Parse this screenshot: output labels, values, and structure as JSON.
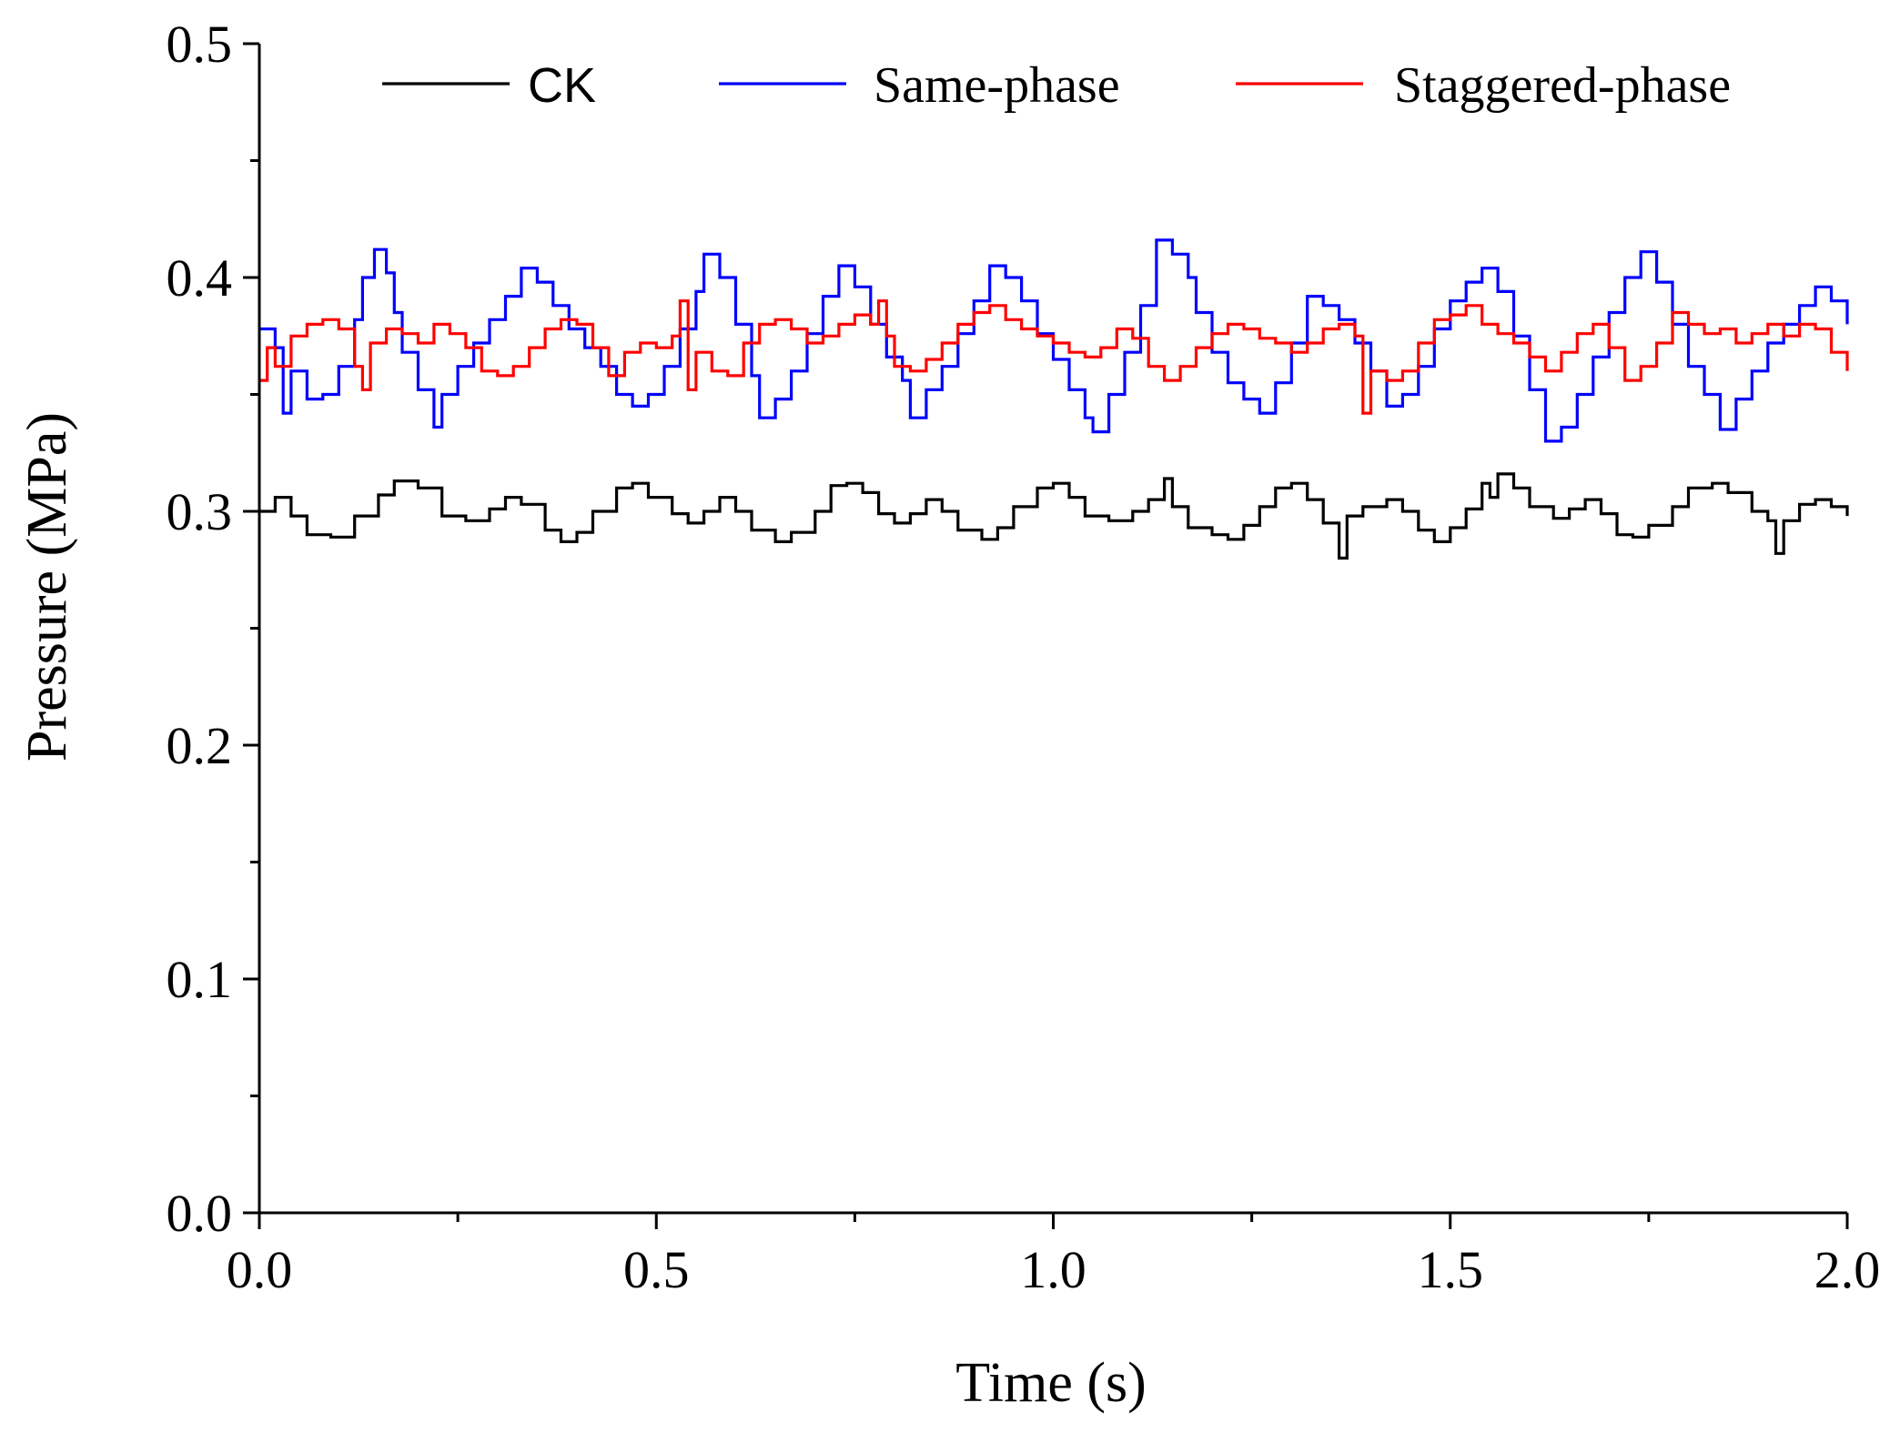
{
  "chart_data": {
    "type": "line",
    "title": "",
    "xlabel": "Time (s)",
    "ylabel": "Pressure (MPa)",
    "xlim": [
      0.0,
      2.0
    ],
    "ylim": [
      0.0,
      0.5
    ],
    "xticks": [
      0.0,
      0.5,
      1.0,
      1.5,
      2.0
    ],
    "xtick_labels": [
      "0.0",
      "0.5",
      "1.0",
      "1.5",
      "2.0"
    ],
    "yticks": [
      0.0,
      0.1,
      0.2,
      0.3,
      0.4,
      0.5
    ],
    "ytick_labels": [
      "0.0",
      "0.1",
      "0.2",
      "0.3",
      "0.4",
      "0.5"
    ],
    "x_minor_step": 0.25,
    "y_minor_step": 0.05,
    "grid": false,
    "legend_position": "top",
    "series": [
      {
        "name": "CK",
        "color": "#000000",
        "step": true,
        "points": [
          [
            0.0,
            0.3
          ],
          [
            0.02,
            0.306
          ],
          [
            0.04,
            0.298
          ],
          [
            0.06,
            0.29
          ],
          [
            0.09,
            0.289
          ],
          [
            0.12,
            0.298
          ],
          [
            0.15,
            0.307
          ],
          [
            0.17,
            0.313
          ],
          [
            0.2,
            0.31
          ],
          [
            0.23,
            0.298
          ],
          [
            0.26,
            0.296
          ],
          [
            0.29,
            0.301
          ],
          [
            0.31,
            0.306
          ],
          [
            0.33,
            0.303
          ],
          [
            0.36,
            0.292
          ],
          [
            0.38,
            0.287
          ],
          [
            0.4,
            0.291
          ],
          [
            0.42,
            0.3
          ],
          [
            0.45,
            0.31
          ],
          [
            0.47,
            0.312
          ],
          [
            0.49,
            0.306
          ],
          [
            0.52,
            0.299
          ],
          [
            0.54,
            0.295
          ],
          [
            0.56,
            0.3
          ],
          [
            0.58,
            0.306
          ],
          [
            0.6,
            0.3
          ],
          [
            0.62,
            0.292
          ],
          [
            0.65,
            0.287
          ],
          [
            0.67,
            0.291
          ],
          [
            0.7,
            0.3
          ],
          [
            0.72,
            0.311
          ],
          [
            0.74,
            0.312
          ],
          [
            0.76,
            0.308
          ],
          [
            0.78,
            0.299
          ],
          [
            0.8,
            0.295
          ],
          [
            0.82,
            0.299
          ],
          [
            0.84,
            0.305
          ],
          [
            0.86,
            0.3
          ],
          [
            0.88,
            0.292
          ],
          [
            0.91,
            0.288
          ],
          [
            0.93,
            0.293
          ],
          [
            0.95,
            0.302
          ],
          [
            0.98,
            0.31
          ],
          [
            1.0,
            0.312
          ],
          [
            1.02,
            0.306
          ],
          [
            1.04,
            0.298
          ],
          [
            1.07,
            0.296
          ],
          [
            1.1,
            0.3
          ],
          [
            1.12,
            0.305
          ],
          [
            1.14,
            0.314
          ],
          [
            1.15,
            0.302
          ],
          [
            1.17,
            0.293
          ],
          [
            1.2,
            0.29
          ],
          [
            1.22,
            0.288
          ],
          [
            1.24,
            0.294
          ],
          [
            1.26,
            0.302
          ],
          [
            1.28,
            0.31
          ],
          [
            1.3,
            0.312
          ],
          [
            1.32,
            0.305
          ],
          [
            1.34,
            0.295
          ],
          [
            1.36,
            0.28
          ],
          [
            1.37,
            0.298
          ],
          [
            1.39,
            0.302
          ],
          [
            1.42,
            0.305
          ],
          [
            1.44,
            0.3
          ],
          [
            1.46,
            0.292
          ],
          [
            1.48,
            0.287
          ],
          [
            1.5,
            0.293
          ],
          [
            1.52,
            0.301
          ],
          [
            1.54,
            0.312
          ],
          [
            1.55,
            0.306
          ],
          [
            1.56,
            0.316
          ],
          [
            1.58,
            0.31
          ],
          [
            1.6,
            0.302
          ],
          [
            1.63,
            0.297
          ],
          [
            1.65,
            0.301
          ],
          [
            1.67,
            0.305
          ],
          [
            1.69,
            0.299
          ],
          [
            1.71,
            0.29
          ],
          [
            1.73,
            0.289
          ],
          [
            1.75,
            0.294
          ],
          [
            1.78,
            0.302
          ],
          [
            1.8,
            0.31
          ],
          [
            1.83,
            0.312
          ],
          [
            1.85,
            0.308
          ],
          [
            1.88,
            0.3
          ],
          [
            1.9,
            0.296
          ],
          [
            1.91,
            0.282
          ],
          [
            1.92,
            0.296
          ],
          [
            1.94,
            0.303
          ],
          [
            1.96,
            0.305
          ],
          [
            1.98,
            0.302
          ],
          [
            2.0,
            0.298
          ]
        ]
      },
      {
        "name": "Same-phase",
        "color": "#0000FF",
        "step": true,
        "points": [
          [
            0.0,
            0.378
          ],
          [
            0.02,
            0.37
          ],
          [
            0.03,
            0.342
          ],
          [
            0.04,
            0.36
          ],
          [
            0.06,
            0.348
          ],
          [
            0.08,
            0.35
          ],
          [
            0.1,
            0.362
          ],
          [
            0.12,
            0.382
          ],
          [
            0.13,
            0.4
          ],
          [
            0.145,
            0.412
          ],
          [
            0.16,
            0.402
          ],
          [
            0.17,
            0.385
          ],
          [
            0.18,
            0.368
          ],
          [
            0.2,
            0.352
          ],
          [
            0.22,
            0.336
          ],
          [
            0.23,
            0.35
          ],
          [
            0.25,
            0.362
          ],
          [
            0.27,
            0.372
          ],
          [
            0.29,
            0.382
          ],
          [
            0.31,
            0.392
          ],
          [
            0.33,
            0.404
          ],
          [
            0.35,
            0.398
          ],
          [
            0.37,
            0.388
          ],
          [
            0.39,
            0.378
          ],
          [
            0.41,
            0.37
          ],
          [
            0.43,
            0.362
          ],
          [
            0.45,
            0.35
          ],
          [
            0.47,
            0.345
          ],
          [
            0.49,
            0.35
          ],
          [
            0.51,
            0.362
          ],
          [
            0.53,
            0.378
          ],
          [
            0.55,
            0.394
          ],
          [
            0.56,
            0.41
          ],
          [
            0.58,
            0.4
          ],
          [
            0.6,
            0.38
          ],
          [
            0.62,
            0.358
          ],
          [
            0.63,
            0.34
          ],
          [
            0.65,
            0.348
          ],
          [
            0.67,
            0.36
          ],
          [
            0.69,
            0.376
          ],
          [
            0.71,
            0.392
          ],
          [
            0.73,
            0.405
          ],
          [
            0.75,
            0.396
          ],
          [
            0.77,
            0.38
          ],
          [
            0.79,
            0.366
          ],
          [
            0.81,
            0.356
          ],
          [
            0.82,
            0.34
          ],
          [
            0.84,
            0.352
          ],
          [
            0.86,
            0.362
          ],
          [
            0.88,
            0.376
          ],
          [
            0.9,
            0.39
          ],
          [
            0.92,
            0.405
          ],
          [
            0.94,
            0.4
          ],
          [
            0.96,
            0.39
          ],
          [
            0.98,
            0.376
          ],
          [
            1.0,
            0.365
          ],
          [
            1.02,
            0.352
          ],
          [
            1.04,
            0.34
          ],
          [
            1.05,
            0.334
          ],
          [
            1.07,
            0.35
          ],
          [
            1.09,
            0.368
          ],
          [
            1.11,
            0.388
          ],
          [
            1.13,
            0.416
          ],
          [
            1.15,
            0.41
          ],
          [
            1.17,
            0.4
          ],
          [
            1.18,
            0.385
          ],
          [
            1.2,
            0.368
          ],
          [
            1.22,
            0.355
          ],
          [
            1.24,
            0.348
          ],
          [
            1.26,
            0.342
          ],
          [
            1.28,
            0.355
          ],
          [
            1.3,
            0.372
          ],
          [
            1.32,
            0.392
          ],
          [
            1.34,
            0.388
          ],
          [
            1.36,
            0.382
          ],
          [
            1.38,
            0.372
          ],
          [
            1.4,
            0.36
          ],
          [
            1.42,
            0.345
          ],
          [
            1.44,
            0.35
          ],
          [
            1.46,
            0.362
          ],
          [
            1.48,
            0.378
          ],
          [
            1.5,
            0.39
          ],
          [
            1.52,
            0.398
          ],
          [
            1.54,
            0.404
          ],
          [
            1.56,
            0.394
          ],
          [
            1.58,
            0.375
          ],
          [
            1.6,
            0.352
          ],
          [
            1.62,
            0.33
          ],
          [
            1.64,
            0.336
          ],
          [
            1.66,
            0.35
          ],
          [
            1.68,
            0.366
          ],
          [
            1.7,
            0.385
          ],
          [
            1.72,
            0.4
          ],
          [
            1.74,
            0.411
          ],
          [
            1.76,
            0.398
          ],
          [
            1.78,
            0.38
          ],
          [
            1.8,
            0.362
          ],
          [
            1.82,
            0.35
          ],
          [
            1.84,
            0.335
          ],
          [
            1.86,
            0.348
          ],
          [
            1.88,
            0.36
          ],
          [
            1.9,
            0.372
          ],
          [
            1.92,
            0.38
          ],
          [
            1.94,
            0.388
          ],
          [
            1.96,
            0.396
          ],
          [
            1.98,
            0.39
          ],
          [
            2.0,
            0.38
          ]
        ]
      },
      {
        "name": "Staggered-phase",
        "color": "#FF0000",
        "step": true,
        "points": [
          [
            0.0,
            0.356
          ],
          [
            0.01,
            0.37
          ],
          [
            0.02,
            0.362
          ],
          [
            0.04,
            0.375
          ],
          [
            0.06,
            0.38
          ],
          [
            0.08,
            0.382
          ],
          [
            0.1,
            0.378
          ],
          [
            0.12,
            0.362
          ],
          [
            0.13,
            0.352
          ],
          [
            0.14,
            0.372
          ],
          [
            0.16,
            0.378
          ],
          [
            0.18,
            0.376
          ],
          [
            0.2,
            0.372
          ],
          [
            0.22,
            0.38
          ],
          [
            0.24,
            0.376
          ],
          [
            0.26,
            0.37
          ],
          [
            0.28,
            0.36
          ],
          [
            0.3,
            0.358
          ],
          [
            0.32,
            0.362
          ],
          [
            0.34,
            0.37
          ],
          [
            0.36,
            0.378
          ],
          [
            0.38,
            0.382
          ],
          [
            0.4,
            0.38
          ],
          [
            0.42,
            0.37
          ],
          [
            0.44,
            0.358
          ],
          [
            0.46,
            0.368
          ],
          [
            0.48,
            0.372
          ],
          [
            0.5,
            0.37
          ],
          [
            0.52,
            0.375
          ],
          [
            0.53,
            0.39
          ],
          [
            0.54,
            0.352
          ],
          [
            0.55,
            0.368
          ],
          [
            0.57,
            0.36
          ],
          [
            0.59,
            0.358
          ],
          [
            0.61,
            0.372
          ],
          [
            0.63,
            0.38
          ],
          [
            0.65,
            0.382
          ],
          [
            0.67,
            0.378
          ],
          [
            0.69,
            0.372
          ],
          [
            0.71,
            0.375
          ],
          [
            0.73,
            0.38
          ],
          [
            0.75,
            0.384
          ],
          [
            0.77,
            0.38
          ],
          [
            0.78,
            0.39
          ],
          [
            0.79,
            0.375
          ],
          [
            0.8,
            0.362
          ],
          [
            0.82,
            0.36
          ],
          [
            0.84,
            0.365
          ],
          [
            0.86,
            0.372
          ],
          [
            0.88,
            0.38
          ],
          [
            0.9,
            0.385
          ],
          [
            0.92,
            0.388
          ],
          [
            0.94,
            0.382
          ],
          [
            0.96,
            0.378
          ],
          [
            0.98,
            0.375
          ],
          [
            1.0,
            0.372
          ],
          [
            1.02,
            0.368
          ],
          [
            1.04,
            0.366
          ],
          [
            1.06,
            0.37
          ],
          [
            1.08,
            0.378
          ],
          [
            1.1,
            0.374
          ],
          [
            1.12,
            0.362
          ],
          [
            1.14,
            0.356
          ],
          [
            1.16,
            0.362
          ],
          [
            1.18,
            0.37
          ],
          [
            1.2,
            0.376
          ],
          [
            1.22,
            0.38
          ],
          [
            1.24,
            0.378
          ],
          [
            1.26,
            0.374
          ],
          [
            1.28,
            0.372
          ],
          [
            1.3,
            0.368
          ],
          [
            1.32,
            0.372
          ],
          [
            1.34,
            0.378
          ],
          [
            1.36,
            0.38
          ],
          [
            1.38,
            0.375
          ],
          [
            1.39,
            0.342
          ],
          [
            1.4,
            0.36
          ],
          [
            1.42,
            0.356
          ],
          [
            1.44,
            0.36
          ],
          [
            1.46,
            0.372
          ],
          [
            1.48,
            0.382
          ],
          [
            1.5,
            0.384
          ],
          [
            1.52,
            0.388
          ],
          [
            1.54,
            0.38
          ],
          [
            1.56,
            0.376
          ],
          [
            1.58,
            0.372
          ],
          [
            1.6,
            0.366
          ],
          [
            1.62,
            0.36
          ],
          [
            1.64,
            0.368
          ],
          [
            1.66,
            0.376
          ],
          [
            1.68,
            0.38
          ],
          [
            1.7,
            0.37
          ],
          [
            1.72,
            0.356
          ],
          [
            1.74,
            0.362
          ],
          [
            1.76,
            0.372
          ],
          [
            1.78,
            0.385
          ],
          [
            1.8,
            0.38
          ],
          [
            1.82,
            0.376
          ],
          [
            1.84,
            0.378
          ],
          [
            1.86,
            0.372
          ],
          [
            1.88,
            0.376
          ],
          [
            1.9,
            0.38
          ],
          [
            1.92,
            0.375
          ],
          [
            1.94,
            0.38
          ],
          [
            1.96,
            0.378
          ],
          [
            1.98,
            0.368
          ],
          [
            2.0,
            0.36
          ]
        ]
      }
    ]
  }
}
